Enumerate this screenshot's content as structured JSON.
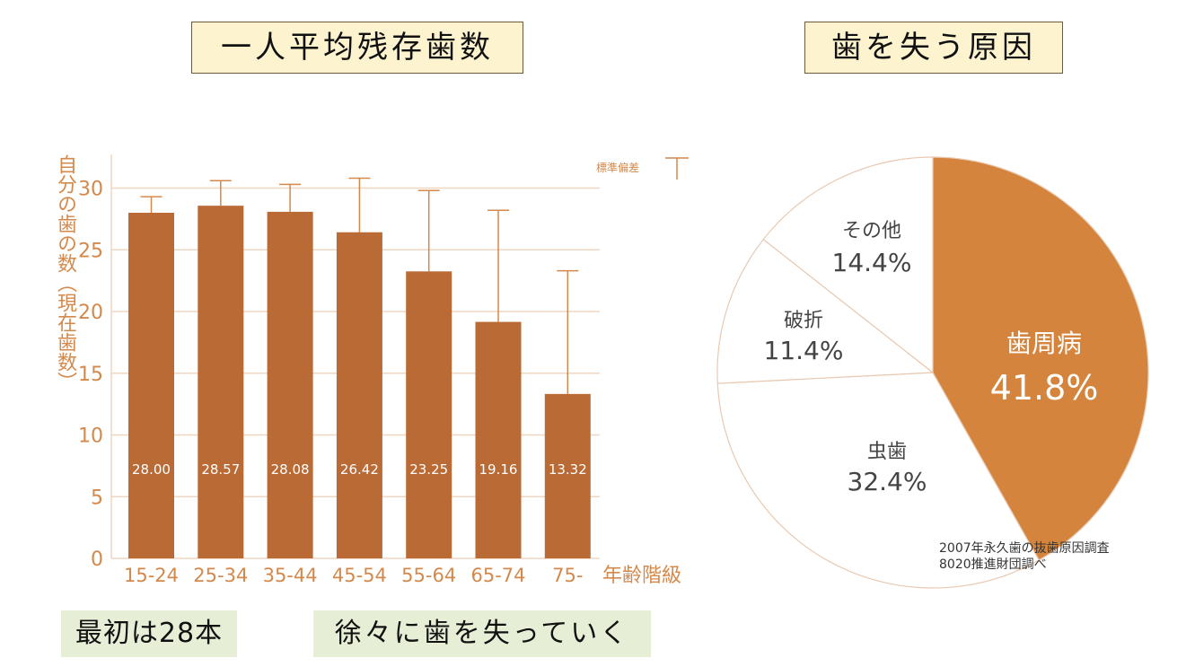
{
  "titles": {
    "bar": "一人平均残存歯数",
    "pie": "歯を失う原因"
  },
  "notes": {
    "left": "最初は28本",
    "right": "徐々に歯を失っていく"
  },
  "source": {
    "line1": "2007年永久歯の抜歯原因調査",
    "line2": "8020推進財団調べ"
  },
  "colors": {
    "bar": "#b96a35",
    "pie_accent": "#d4843c",
    "label": "#d4894c",
    "grid": "#efd6c0"
  },
  "chart_data": [
    {
      "type": "bar",
      "ylabel": "自分の歯の数（現在歯数）",
      "xlabel": "年齢階級",
      "error_legend": "標準偏差",
      "ylim": [
        0,
        32
      ],
      "yticks": [
        0,
        5,
        10,
        15,
        20,
        25,
        30
      ],
      "grid": true,
      "categories": [
        "15-24",
        "25-34",
        "35-44",
        "45-54",
        "55-64",
        "65-74",
        "75-"
      ],
      "values": [
        28.0,
        28.57,
        28.08,
        26.42,
        23.25,
        19.16,
        13.32
      ],
      "value_labels": [
        "28.00",
        "28.57",
        "28.08",
        "26.42",
        "23.25",
        "19.16",
        "13.32"
      ],
      "error_upper": [
        29.3,
        30.6,
        30.3,
        30.8,
        29.8,
        28.2,
        23.3
      ]
    },
    {
      "type": "pie",
      "slices": [
        {
          "label": "歯周病",
          "value": 41.8,
          "pct": "41.8%",
          "highlight": true
        },
        {
          "label": "虫歯",
          "value": 32.4,
          "pct": "32.4%",
          "highlight": false
        },
        {
          "label": "破折",
          "value": 11.4,
          "pct": "11.4%",
          "highlight": false
        },
        {
          "label": "その他",
          "value": 14.4,
          "pct": "14.4%",
          "highlight": false
        }
      ]
    }
  ]
}
